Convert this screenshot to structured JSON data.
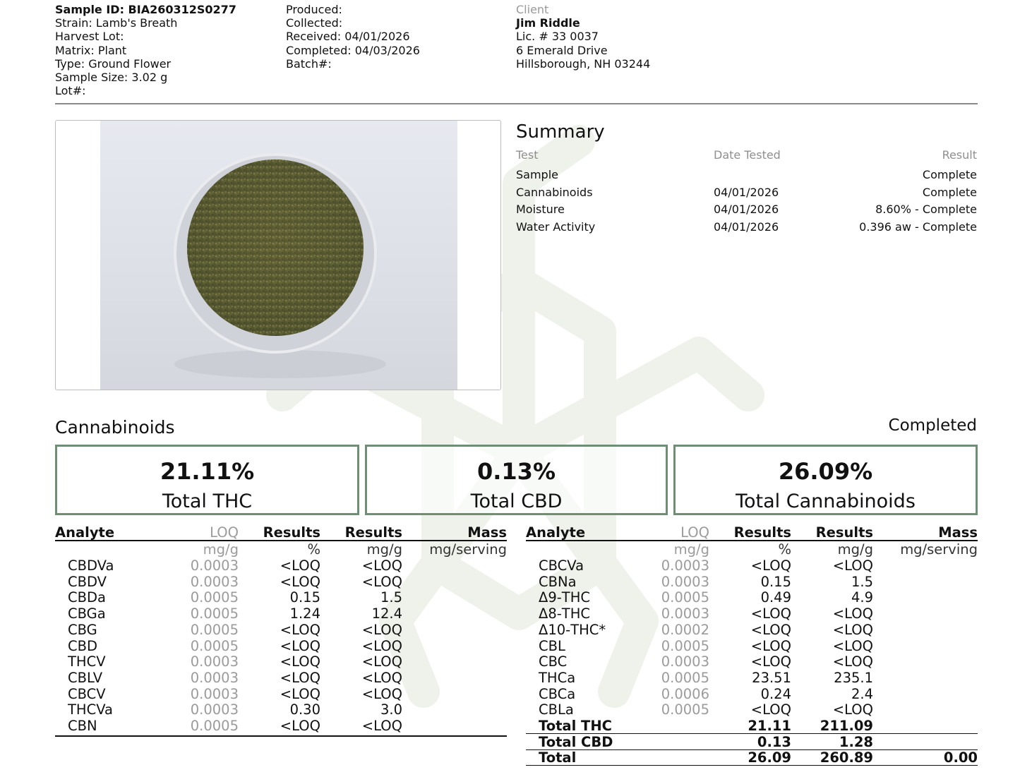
{
  "header": {
    "sample": [
      {
        "label": "Sample ID: BIA260312S0277",
        "bold": true
      },
      {
        "label": "Strain: Lamb's Breath"
      },
      {
        "label": "Harvest Lot:"
      },
      {
        "label": "Matrix: Plant"
      },
      {
        "label": "Type: Ground Flower"
      },
      {
        "label": "Sample Size: 3.02 g"
      },
      {
        "label": "Lot#:"
      }
    ],
    "dates": [
      "Produced:",
      "Collected:",
      "Received: 04/01/2026",
      "Completed: 04/03/2026",
      "Batch#:"
    ],
    "client": {
      "heading": "Client",
      "name": "Jim Riddle",
      "license": "Lic. # 33 0037",
      "address1": "6 Emerald Drive",
      "address2": "Hillsborough, NH 03244"
    }
  },
  "photo": {
    "subject": "ground-flower-sample-dish"
  },
  "summary": {
    "title": "Summary",
    "columns": [
      "Test",
      "Date Tested",
      "Result"
    ],
    "rows": [
      [
        "Sample",
        "",
        "Complete"
      ],
      [
        "Cannabinoids",
        "04/01/2026",
        "Complete"
      ],
      [
        "Moisture",
        "04/01/2026",
        "8.60% - Complete"
      ],
      [
        "Water Activity",
        "04/01/2026",
        "0.396 aw - Complete"
      ]
    ]
  },
  "cannabinoids": {
    "title": "Cannabinoids",
    "status": "Completed",
    "totals": [
      {
        "value": "21.11%",
        "label": "Total THC"
      },
      {
        "value": "0.13%",
        "label": "Total CBD"
      },
      {
        "value": "26.09%",
        "label": "Total Cannabinoids"
      }
    ],
    "columns": [
      "Analyte",
      "LOQ",
      "Results",
      "Results",
      "Mass"
    ],
    "units": [
      "",
      "mg/g",
      "%",
      "mg/g",
      "mg/serving"
    ],
    "left_rows": [
      [
        "CBDVa",
        "0.0003",
        "<LOQ",
        "<LOQ"
      ],
      [
        "CBDV",
        "0.0003",
        "<LOQ",
        "<LOQ"
      ],
      [
        "CBDa",
        "0.0005",
        "0.15",
        "1.5"
      ],
      [
        "CBGa",
        "0.0005",
        "1.24",
        "12.4"
      ],
      [
        "CBG",
        "0.0005",
        "<LOQ",
        "<LOQ"
      ],
      [
        "CBD",
        "0.0005",
        "<LOQ",
        "<LOQ"
      ],
      [
        "THCV",
        "0.0003",
        "<LOQ",
        "<LOQ"
      ],
      [
        "CBLV",
        "0.0003",
        "<LOQ",
        "<LOQ"
      ],
      [
        "CBCV",
        "0.0003",
        "<LOQ",
        "<LOQ"
      ],
      [
        "THCVa",
        "0.0003",
        "0.30",
        "3.0"
      ],
      [
        "CBN",
        "0.0005",
        "<LOQ",
        "<LOQ"
      ]
    ],
    "right_rows": [
      [
        "CBCVa",
        "0.0003",
        "<LOQ",
        "<LOQ"
      ],
      [
        "CBNa",
        "0.0003",
        "0.15",
        "1.5"
      ],
      [
        "Δ9-THC",
        "0.0005",
        "0.49",
        "4.9"
      ],
      [
        "Δ8-THC",
        "0.0003",
        "<LOQ",
        "<LOQ"
      ],
      [
        "Δ10-THC*",
        "0.0002",
        "<LOQ",
        "<LOQ"
      ],
      [
        "CBL",
        "0.0005",
        "<LOQ",
        "<LOQ"
      ],
      [
        "CBC",
        "0.0003",
        "<LOQ",
        "<LOQ"
      ],
      [
        "THCa",
        "0.0005",
        "23.51",
        "235.1"
      ],
      [
        "CBCa",
        "0.0006",
        "0.24",
        "2.4"
      ],
      [
        "CBLa",
        "0.0005",
        "<LOQ",
        "<LOQ"
      ]
    ],
    "summary_rows": [
      [
        "Total THC",
        "",
        "21.11",
        "211.09",
        ""
      ],
      [
        "Total CBD",
        "",
        "0.13",
        "1.28",
        ""
      ],
      [
        "Total",
        "",
        "26.09",
        "260.89",
        "0.00"
      ]
    ]
  }
}
